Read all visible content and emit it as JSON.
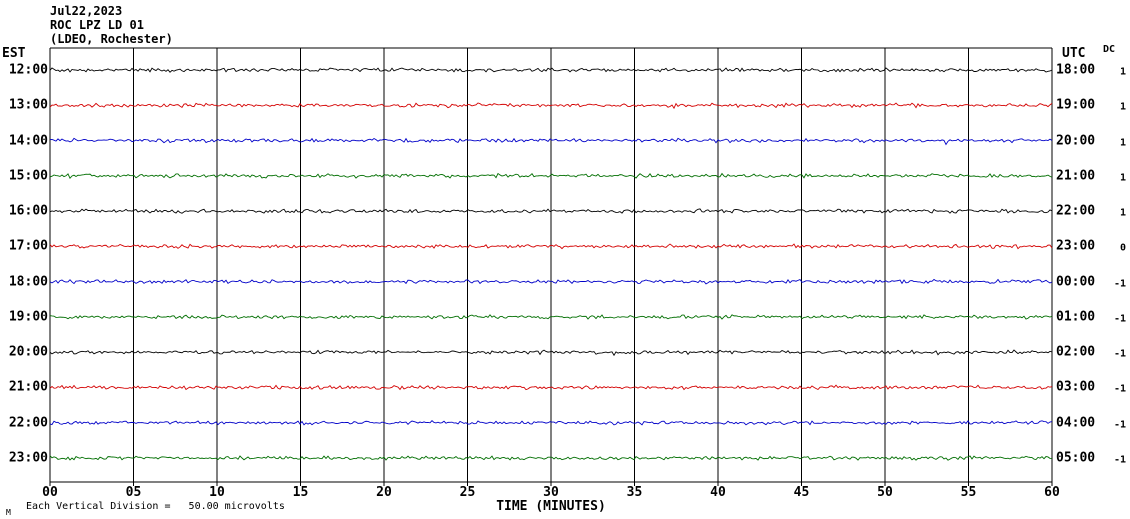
{
  "header": {
    "date": "Jul22,2023",
    "station": "ROC LPZ LD 01",
    "location": "(LDEO, Rochester)"
  },
  "axes": {
    "left_timezone_label": "EST",
    "right_timezone_label": "UTC",
    "dc_column_label": "DC",
    "x_title": "TIME (MINUTES)",
    "x_ticks": [
      "00",
      "05",
      "10",
      "15",
      "20",
      "25",
      "30",
      "35",
      "40",
      "45",
      "50",
      "55",
      "60"
    ],
    "footnote": "Each Vertical Division =   50.00 microvolts",
    "corner_glyph": "M"
  },
  "colors": {
    "background": "#ffffff",
    "grid": "#000000",
    "trace_black": "#000000",
    "trace_red": "#d40000",
    "trace_blue": "#0000c8",
    "trace_green": "#006e00"
  },
  "chart_data": {
    "type": "line",
    "title": "ROC LPZ LD 01 helicorder record, Jul 22, 2023 (LDEO, Rochester)",
    "xlabel": "TIME (MINUTES)",
    "x_range_minutes": [
      0,
      60
    ],
    "x_tick_interval_minutes": 5,
    "vertical_division_microvolts": 50.0,
    "series_description": "Twelve hourly seismogram traces of low-amplitude background noise; no visible seismic events; amplitude roughly within one vertical division.",
    "traces": [
      {
        "est": "12:00",
        "utc": "18:00",
        "dc": "1",
        "color": "#000000"
      },
      {
        "est": "13:00",
        "utc": "19:00",
        "dc": "1",
        "color": "#d40000"
      },
      {
        "est": "14:00",
        "utc": "20:00",
        "dc": "1",
        "color": "#0000c8"
      },
      {
        "est": "15:00",
        "utc": "21:00",
        "dc": "1",
        "color": "#006e00"
      },
      {
        "est": "16:00",
        "utc": "22:00",
        "dc": "1",
        "color": "#000000"
      },
      {
        "est": "17:00",
        "utc": "23:00",
        "dc": "0",
        "color": "#d40000"
      },
      {
        "est": "18:00",
        "utc": "00:00",
        "dc": "-1",
        "color": "#0000c8"
      },
      {
        "est": "19:00",
        "utc": "01:00",
        "dc": "-1",
        "color": "#006e00"
      },
      {
        "est": "20:00",
        "utc": "02:00",
        "dc": "-1",
        "color": "#000000"
      },
      {
        "est": "21:00",
        "utc": "03:00",
        "dc": "-1",
        "color": "#d40000"
      },
      {
        "est": "22:00",
        "utc": "04:00",
        "dc": "-1",
        "color": "#0000c8"
      },
      {
        "est": "23:00",
        "utc": "05:00",
        "dc": "-1",
        "color": "#006e00"
      }
    ]
  }
}
